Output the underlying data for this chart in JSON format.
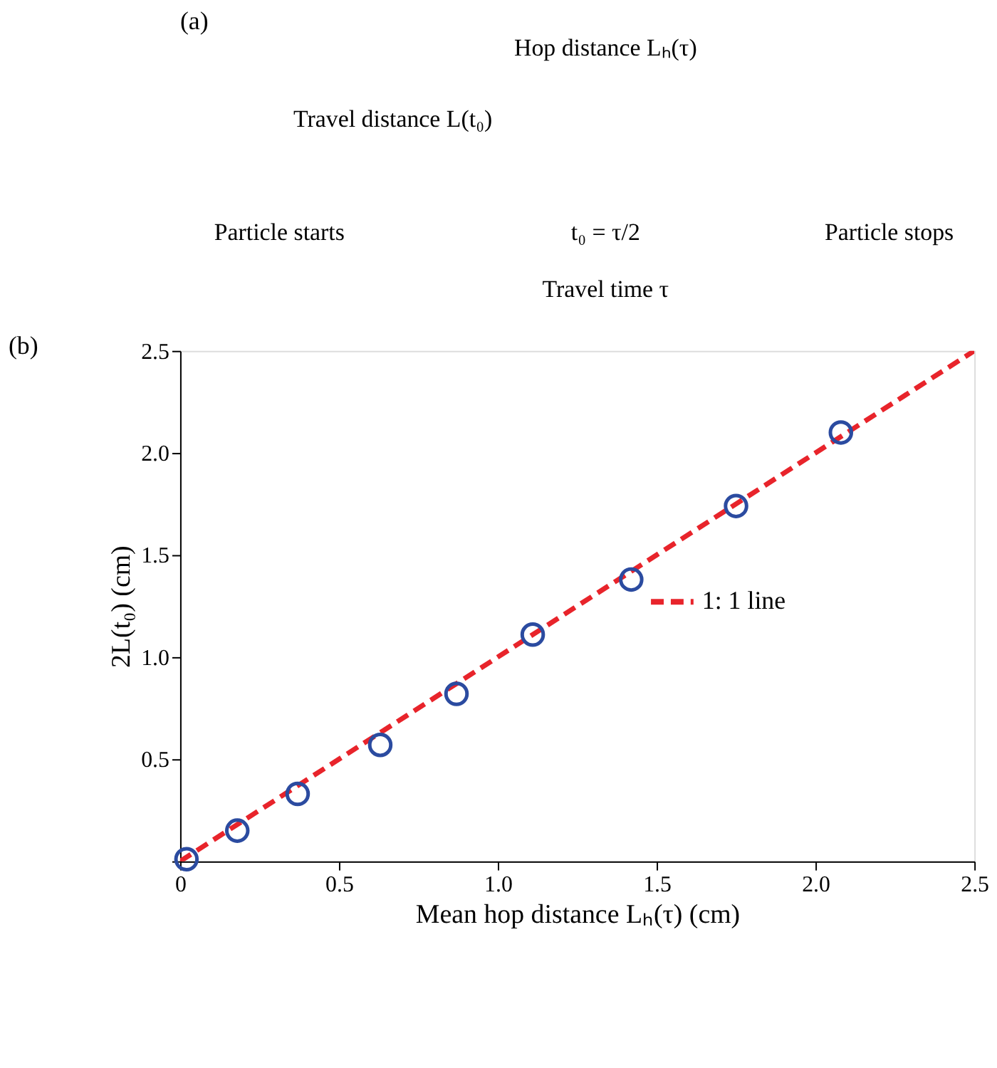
{
  "chart_data": [
    {
      "type": "other",
      "title": "(a)",
      "annotations": [
        "Hop distance Lₕ(τ)",
        "Travel distance L(t₀)",
        "Particle starts",
        "t₀ = τ/2",
        "Particle stops",
        "Travel time τ"
      ]
    },
    {
      "type": "scatter",
      "title": "(b)",
      "xlabel": "Mean hop distance Lₕ(τ) (cm)",
      "ylabel": "2L(t₀) (cm)",
      "xlim": [
        0,
        2.5
      ],
      "ylim": [
        0,
        2.5
      ],
      "xticks": [
        0,
        0.5,
        {
          "value": 1,
          "label": "1.0"
        },
        1.5,
        {
          "value": 2,
          "label": "2.0"
        },
        2.5
      ],
      "yticks": [
        {
          "value": 0,
          "label": null
        },
        0.5,
        {
          "value": 1,
          "label": "1.0"
        },
        1.5,
        {
          "value": 2,
          "label": "2.0"
        },
        2.5
      ],
      "grid": false,
      "legend": "right",
      "marker": "circle",
      "series": [
        {
          "type": "scatter",
          "color": "#2b4ba0",
          "x": [
            0.02,
            0.18,
            0.37,
            0.63,
            0.87,
            1.11,
            1.42,
            1.75,
            2.08
          ],
          "values": [
            0.01,
            0.15,
            0.33,
            0.57,
            0.82,
            1.11,
            1.38,
            1.74,
            2.1
          ]
        },
        {
          "type": "line",
          "name": "1: 1 line",
          "color": "#e8242b",
          "line_style": "dashed",
          "marker": "none",
          "x": [
            0,
            2.5
          ],
          "values": [
            0,
            2.5
          ]
        }
      ]
    }
  ]
}
